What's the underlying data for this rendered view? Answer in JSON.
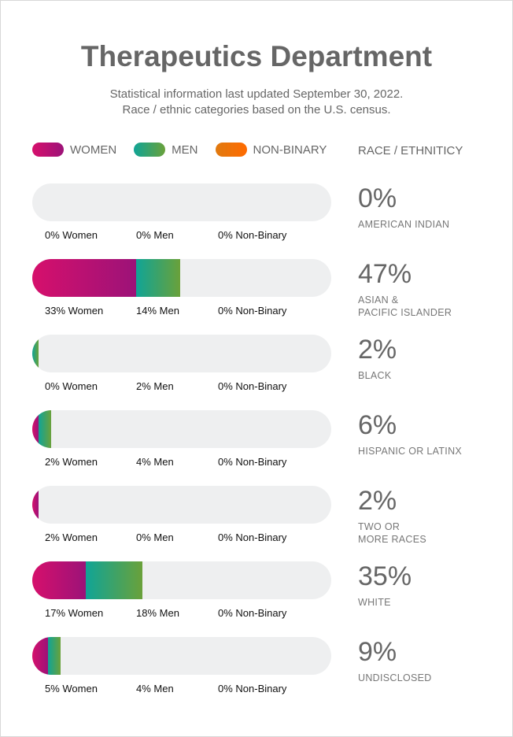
{
  "title": "Therapeutics Department",
  "subtitle_line1": "Statistical information last updated September 30, 2022.",
  "subtitle_line2": "Race / ethnic categories based on the U.S. census.",
  "legend": {
    "women": "WOMEN",
    "men": "MEN",
    "nonbinary": "NON-BINARY",
    "race": "RACE / ETHNITICY"
  },
  "colors": {
    "women": [
      "#d6106c",
      "#9c1278"
    ],
    "men": [
      "#10a496",
      "#6aa13a"
    ],
    "nonbinary": [
      "#e07a10",
      "#ff6a00"
    ],
    "track": "#eeeff0"
  },
  "chart_data": {
    "type": "bar",
    "stacked": true,
    "orientation": "horizontal",
    "series": [
      {
        "name": "Women"
      },
      {
        "name": "Men"
      },
      {
        "name": "Non-Binary"
      }
    ],
    "rows": [
      {
        "total": "0%",
        "category": "AMERICAN INDIAN",
        "women": 0,
        "men": 0,
        "nonbinary": 0,
        "women_label": "0% Women",
        "men_label": "0% Men",
        "nb_label": "0% Non-Binary"
      },
      {
        "total": "47%",
        "category": "ASIAN &\nPACIFIC ISLANDER",
        "women": 33,
        "men": 14,
        "nonbinary": 0,
        "women_label": "33% Women",
        "men_label": "14% Men",
        "nb_label": "0% Non-Binary"
      },
      {
        "total": "2%",
        "category": "BLACK",
        "women": 0,
        "men": 2,
        "nonbinary": 0,
        "women_label": "0% Women",
        "men_label": "2% Men",
        "nb_label": "0% Non-Binary"
      },
      {
        "total": "6%",
        "category": "HISPANIC OR LATINX",
        "women": 2,
        "men": 4,
        "nonbinary": 0,
        "women_label": "2% Women",
        "men_label": "4% Men",
        "nb_label": "0% Non-Binary"
      },
      {
        "total": "2%",
        "category": "TWO OR\nMORE RACES",
        "women": 2,
        "men": 0,
        "nonbinary": 0,
        "women_label": "2% Women",
        "men_label": "0% Men",
        "nb_label": "0% Non-Binary"
      },
      {
        "total": "35%",
        "category": "WHITE",
        "women": 17,
        "men": 18,
        "nonbinary": 0,
        "women_label": "17% Women",
        "men_label": "18% Men",
        "nb_label": "0% Non-Binary"
      },
      {
        "total": "9%",
        "category": "UNDISCLOSED",
        "women": 5,
        "men": 4,
        "nonbinary": 0,
        "women_label": "5% Women",
        "men_label": "4% Men",
        "nb_label": "0% Non-Binary"
      }
    ]
  }
}
